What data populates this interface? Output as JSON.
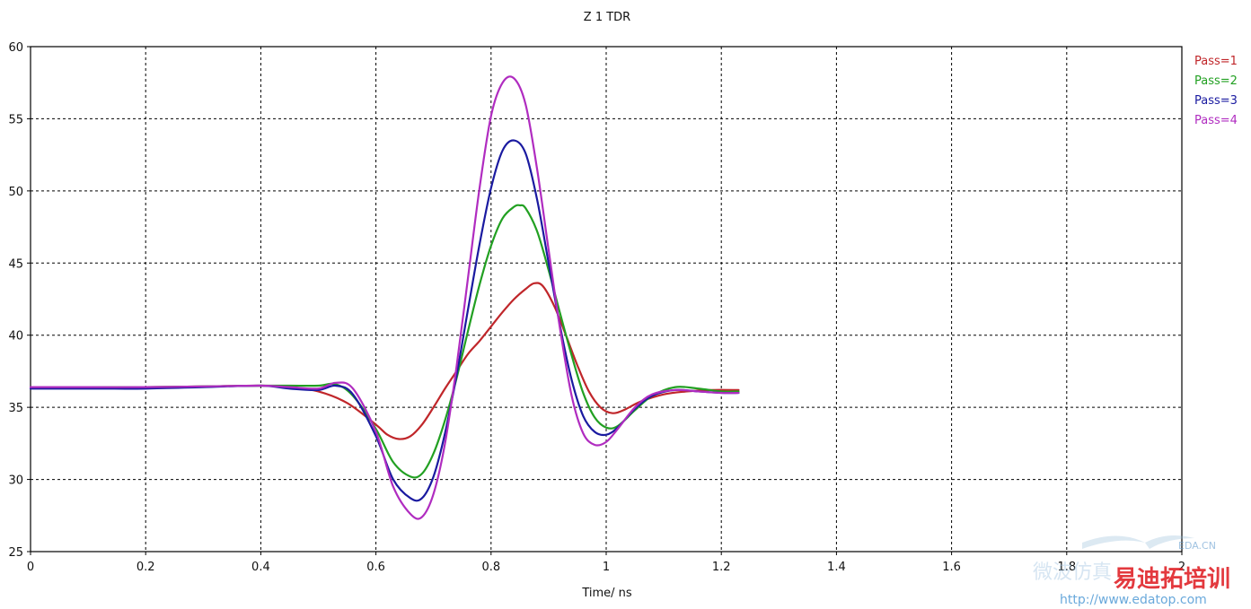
{
  "chart_data": {
    "type": "line",
    "title": "Z 1 TDR",
    "xlabel": "Time/ ns",
    "ylabel": "",
    "xlim": [
      0,
      2.0
    ],
    "ylim": [
      25,
      60
    ],
    "x_ticks": [
      "0",
      "0.2",
      "0.4",
      "0.6",
      "0.8",
      "1",
      "1.2",
      "1.4",
      "1.6",
      "1.8",
      "2"
    ],
    "y_ticks": [
      "25",
      "30",
      "35",
      "40",
      "45",
      "50",
      "55",
      "60"
    ],
    "x_tick_values": [
      0,
      0.2,
      0.4,
      0.6,
      0.8,
      1.0,
      1.2,
      1.4,
      1.6,
      1.8,
      2.0
    ],
    "y_tick_values": [
      25,
      30,
      35,
      40,
      45,
      50,
      55,
      60
    ],
    "grid": true,
    "legend_position": "top-right",
    "series": [
      {
        "name": "Pass=1",
        "color": "#c0262a",
        "x": [
          0,
          0.1,
          0.2,
          0.3,
          0.4,
          0.45,
          0.5,
          0.55,
          0.6,
          0.62,
          0.64,
          0.66,
          0.68,
          0.7,
          0.72,
          0.74,
          0.76,
          0.78,
          0.8,
          0.82,
          0.84,
          0.86,
          0.875,
          0.89,
          0.91,
          0.93,
          0.95,
          0.97,
          0.99,
          1.01,
          1.03,
          1.06,
          1.1,
          1.14,
          1.18,
          1.23
        ],
        "y": [
          36.4,
          36.4,
          36.4,
          36.45,
          36.5,
          36.4,
          36.1,
          35.3,
          33.8,
          33.1,
          32.8,
          33.0,
          33.8,
          35.0,
          36.3,
          37.5,
          38.7,
          39.6,
          40.6,
          41.6,
          42.5,
          43.2,
          43.6,
          43.4,
          42.0,
          40.0,
          37.9,
          36.1,
          35.0,
          34.6,
          34.8,
          35.4,
          35.9,
          36.1,
          36.2,
          36.2
        ]
      },
      {
        "name": "Pass=2",
        "color": "#22a022",
        "x": [
          0,
          0.1,
          0.2,
          0.3,
          0.4,
          0.45,
          0.5,
          0.53,
          0.56,
          0.6,
          0.63,
          0.66,
          0.68,
          0.7,
          0.72,
          0.74,
          0.76,
          0.78,
          0.8,
          0.82,
          0.84,
          0.85,
          0.86,
          0.88,
          0.9,
          0.92,
          0.94,
          0.96,
          0.98,
          1.0,
          1.02,
          1.05,
          1.08,
          1.12,
          1.16,
          1.2,
          1.23
        ],
        "y": [
          36.4,
          36.4,
          36.4,
          36.45,
          36.5,
          36.5,
          36.5,
          36.6,
          35.8,
          33.5,
          31.2,
          30.2,
          30.4,
          31.8,
          34.1,
          37.0,
          40.3,
          43.5,
          46.2,
          48.1,
          48.9,
          49.0,
          48.8,
          47.2,
          44.5,
          41.5,
          38.6,
          36.0,
          34.3,
          33.6,
          33.7,
          34.8,
          35.8,
          36.4,
          36.3,
          36.1,
          36.1
        ]
      },
      {
        "name": "Pass=3",
        "color": "#1a1aa0",
        "x": [
          0,
          0.1,
          0.2,
          0.3,
          0.4,
          0.45,
          0.5,
          0.53,
          0.56,
          0.6,
          0.63,
          0.66,
          0.68,
          0.7,
          0.72,
          0.74,
          0.76,
          0.78,
          0.8,
          0.82,
          0.84,
          0.86,
          0.88,
          0.9,
          0.92,
          0.94,
          0.96,
          0.98,
          1.0,
          1.02,
          1.05,
          1.08,
          1.12,
          1.16,
          1.2,
          1.23
        ],
        "y": [
          36.3,
          36.3,
          36.3,
          36.4,
          36.5,
          36.3,
          36.2,
          36.5,
          35.9,
          33.0,
          30.0,
          28.7,
          28.7,
          30.2,
          33.2,
          37.2,
          41.8,
          46.3,
          50.2,
          52.8,
          53.5,
          52.6,
          49.4,
          45.0,
          40.6,
          36.9,
          34.4,
          33.3,
          33.1,
          33.6,
          34.9,
          35.8,
          36.2,
          36.1,
          36.0,
          36.0
        ]
      },
      {
        "name": "Pass=4",
        "color": "#b02cc0",
        "x": [
          0,
          0.1,
          0.2,
          0.3,
          0.4,
          0.45,
          0.5,
          0.53,
          0.56,
          0.6,
          0.63,
          0.66,
          0.68,
          0.7,
          0.72,
          0.74,
          0.76,
          0.78,
          0.8,
          0.82,
          0.84,
          0.86,
          0.88,
          0.9,
          0.92,
          0.94,
          0.96,
          0.98,
          1.0,
          1.02,
          1.05,
          1.08,
          1.12,
          1.16,
          1.2,
          1.23
        ],
        "y": [
          36.4,
          36.4,
          36.4,
          36.45,
          36.5,
          36.4,
          36.3,
          36.7,
          36.3,
          33.3,
          29.5,
          27.6,
          27.4,
          29.0,
          32.5,
          37.8,
          44.0,
          50.2,
          55.2,
          57.5,
          57.8,
          56.0,
          51.5,
          45.9,
          40.4,
          35.8,
          33.2,
          32.4,
          32.6,
          33.5,
          35.0,
          35.9,
          36.2,
          36.1,
          36.0,
          36.0
        ]
      }
    ]
  },
  "watermark": {
    "site_url": "http://www.edatop.com",
    "brand_text": "易迪拓培训",
    "small_logo": "EDA.CN",
    "faint_cn_text": "微波仿真"
  }
}
